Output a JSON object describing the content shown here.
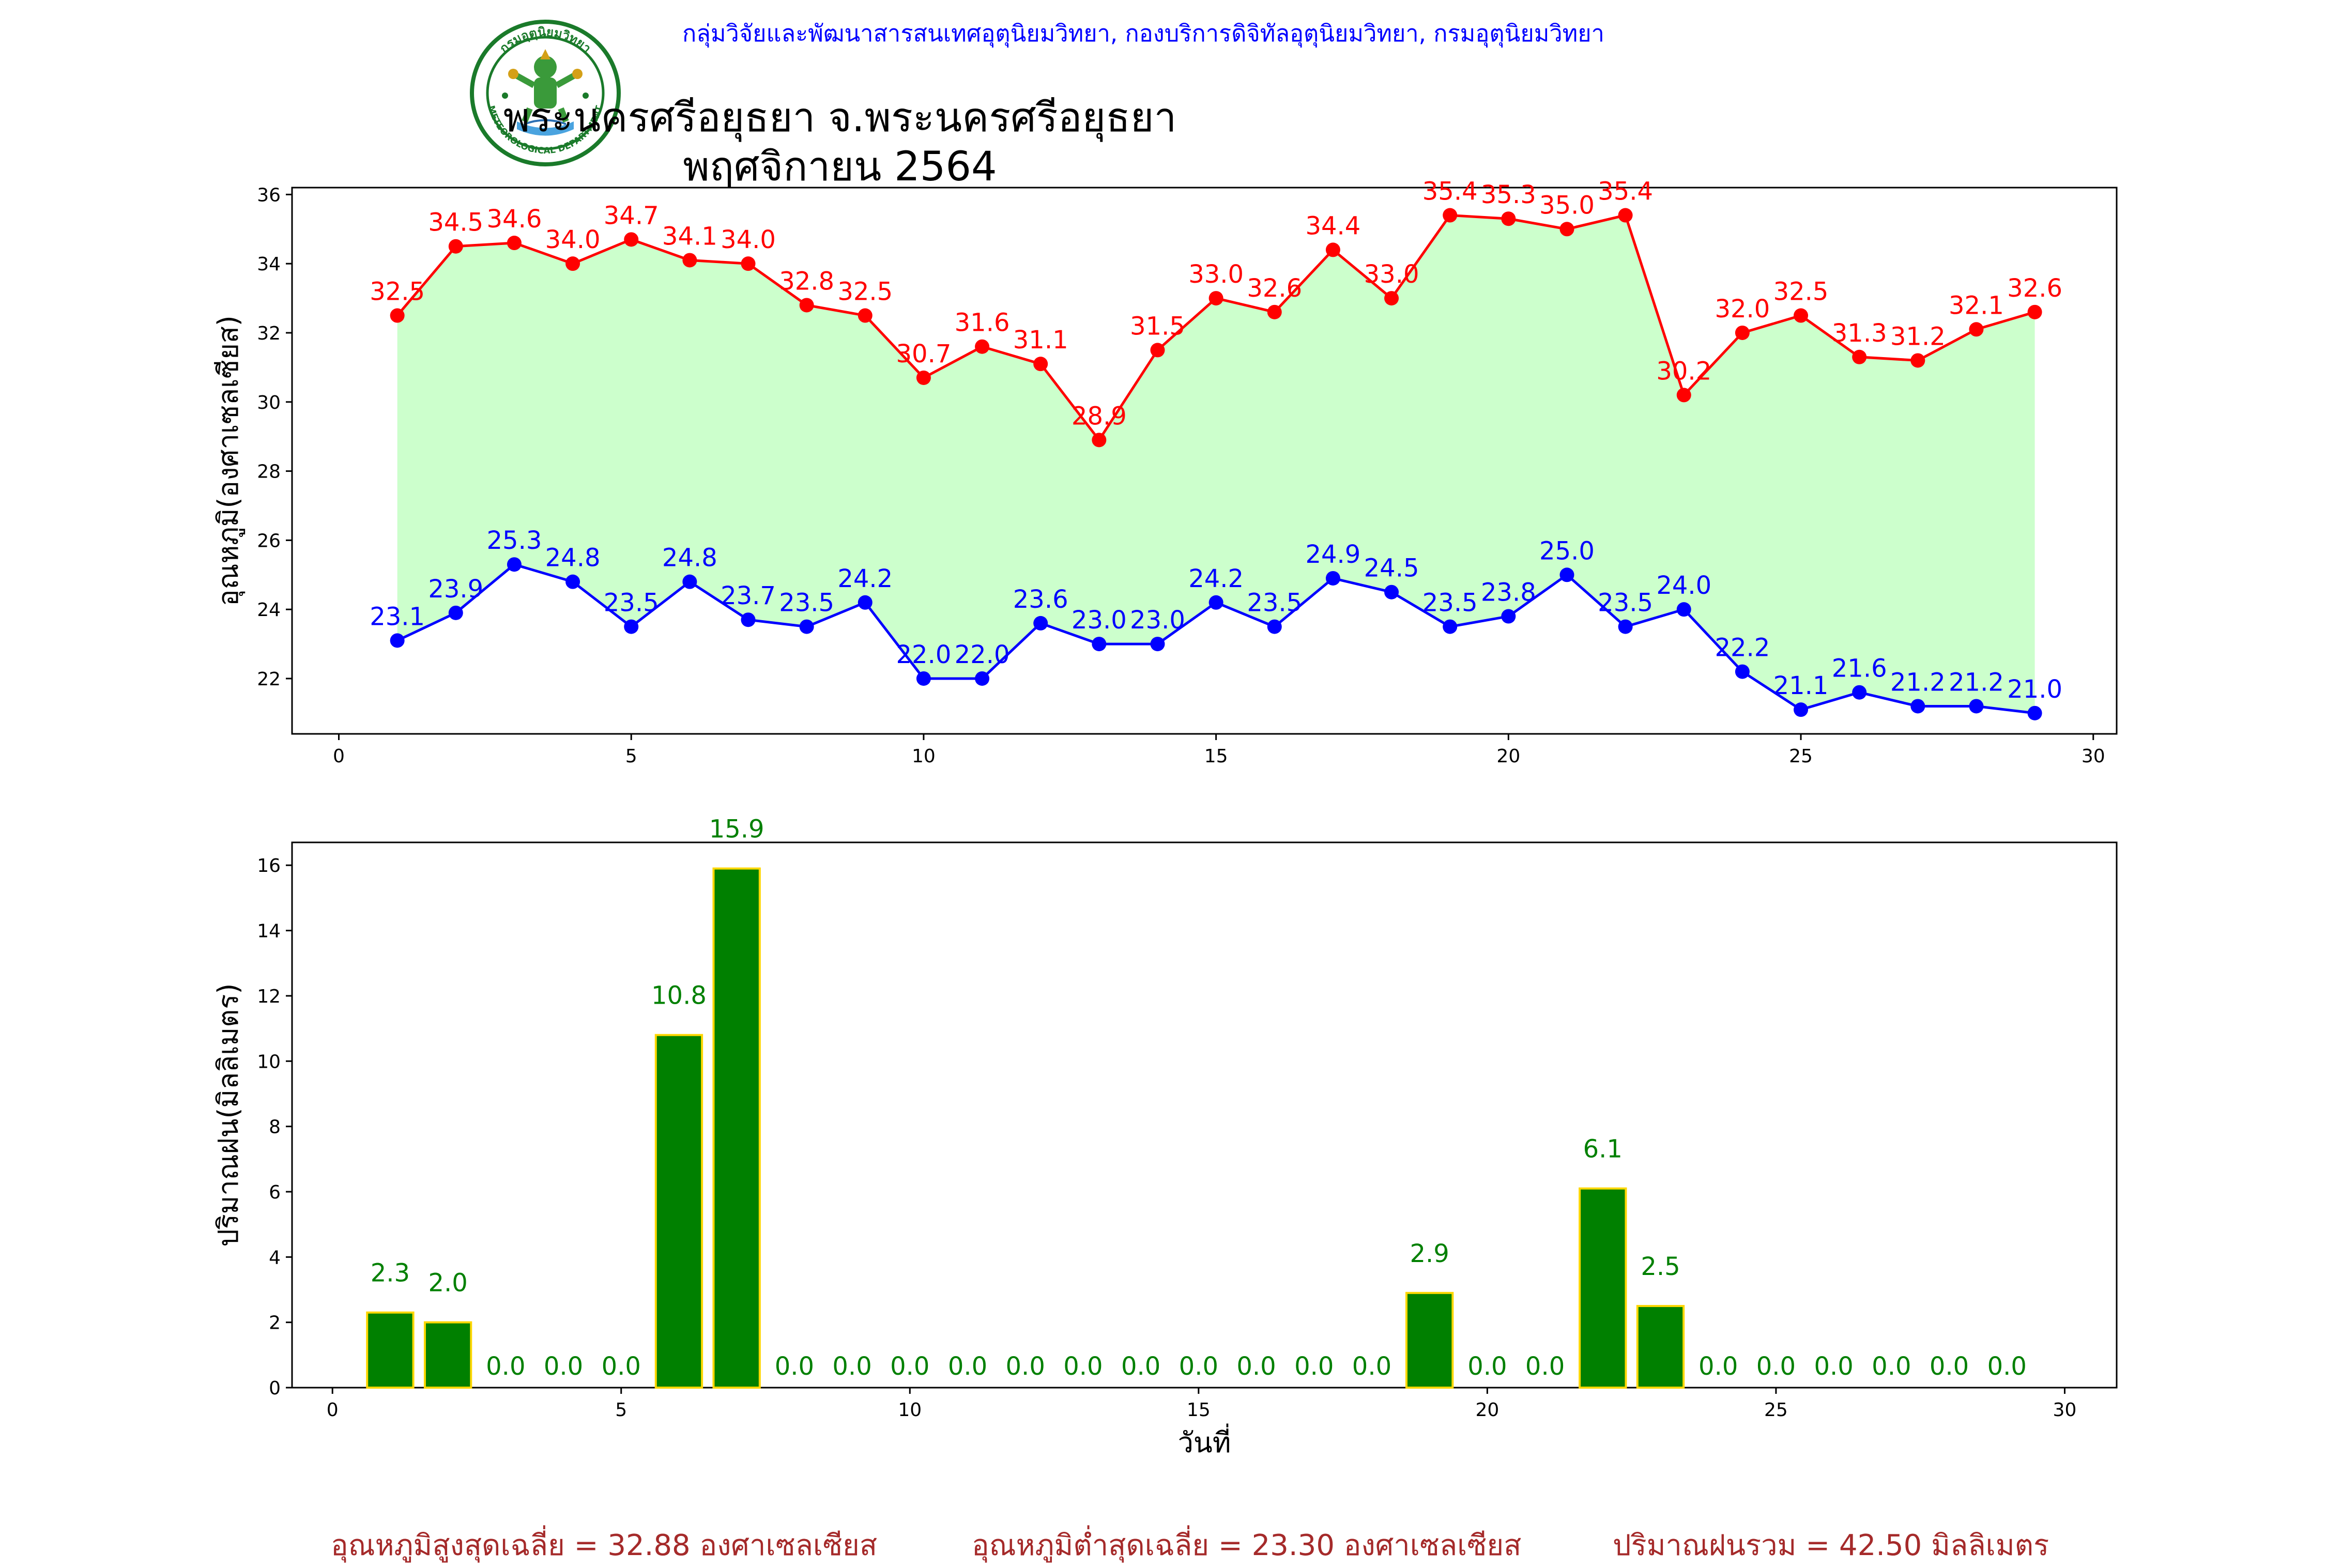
{
  "header": {
    "org": "กลุ่มวิจัยและพัฒนาสารสนเทศอุตุนิยมวิทยา, กองบริการดิจิทัลอุตุนิยมวิทยา, กรมอุตุนิยมวิทยา",
    "logo_text": "กรมอุตุนิยมวิทยา",
    "logo_text_en": "METEOROLOGICAL DEPARTMENT",
    "title_line1": "พระนครศรีอยุธยา จ.พระนครศรีอยุธยา",
    "title_line2": "พฤศจิกายน 2564"
  },
  "colors": {
    "max_line": "#ff0000",
    "min_line": "#0000ff",
    "fill": "#ccffcc",
    "bar": "#008000",
    "bar_edge": "#ffd700",
    "bar_label": "#008000",
    "footer_text": "#a52a2a"
  },
  "chart_data": [
    {
      "type": "line",
      "ylabel": "อุณหภูมิ(องศาเซลเซียส)",
      "xlabel": "",
      "xlim": [
        -0.8,
        30.4
      ],
      "ylim": [
        20.4,
        36.2
      ],
      "xticks": [
        0,
        5,
        10,
        15,
        20,
        25,
        30
      ],
      "yticks": [
        22,
        24,
        26,
        28,
        30,
        32,
        34,
        36
      ],
      "x": [
        1,
        2,
        3,
        4,
        5,
        6,
        7,
        8,
        9,
        10,
        11,
        12,
        13,
        14,
        15,
        16,
        17,
        18,
        19,
        20,
        21,
        22,
        23,
        24,
        25,
        26,
        27,
        28,
        29
      ],
      "series": [
        {
          "role": "max",
          "values": [
            32.5,
            34.5,
            34.6,
            34.0,
            34.7,
            34.1,
            34.0,
            32.8,
            32.5,
            30.7,
            31.6,
            31.1,
            28.9,
            31.5,
            33.0,
            32.6,
            34.4,
            33.0,
            35.4,
            35.3,
            35.0,
            35.4,
            30.2,
            32.0,
            32.5,
            31.3,
            31.2,
            32.1,
            32.6
          ]
        },
        {
          "role": "min",
          "values": [
            23.1,
            23.9,
            25.3,
            24.8,
            23.5,
            24.8,
            23.7,
            23.5,
            24.2,
            22.0,
            22.0,
            23.6,
            23.0,
            23.0,
            24.2,
            23.5,
            24.9,
            24.5,
            23.5,
            23.8,
            25.0,
            23.5,
            24.0,
            22.2,
            21.1,
            21.6,
            21.2,
            21.2,
            21.0
          ]
        }
      ],
      "data_labels": {
        "max": [
          "32.5",
          "34.5",
          "34.6",
          "34.0",
          "34.7",
          "34.1",
          "34.0",
          "32.8",
          "32.5",
          "30.7",
          "31.6",
          "31.1",
          "28.9",
          "31.5",
          "33.0",
          "32.6",
          "34.4",
          "33.0",
          "35.4",
          "35.3",
          "35.0",
          "35.4",
          "30.2",
          "32.0",
          "32.5",
          "31.3",
          "31.2",
          "32.1",
          "32.6"
        ],
        "min": [
          "23.1",
          "23.9",
          "25.3",
          "24.8",
          "23.5",
          "24.8",
          "23.7",
          "23.5",
          "24.2",
          "22.0",
          "22.0",
          "23.6",
          "23.0",
          "23.0",
          "24.2",
          "23.5",
          "24.9",
          "24.5",
          "23.5",
          "23.8",
          "25.0",
          "23.5",
          "24.0",
          "22.2",
          "21.1",
          "21.6",
          "21.2",
          "21.2",
          "21.0"
        ]
      },
      "fill_between": true,
      "grid": false
    },
    {
      "type": "bar",
      "ylabel": "ปริมาณฝน(มิลลิเมตร)",
      "xlabel": "วันที่",
      "xlim": [
        -0.7,
        30.9
      ],
      "ylim": [
        0,
        16.7
      ],
      "xticks": [
        0,
        5,
        10,
        15,
        20,
        25,
        30
      ],
      "yticks": [
        0,
        2,
        4,
        6,
        8,
        10,
        12,
        14,
        16
      ],
      "x": [
        1,
        2,
        3,
        4,
        5,
        6,
        7,
        8,
        9,
        10,
        11,
        12,
        13,
        14,
        15,
        16,
        17,
        18,
        19,
        20,
        21,
        22,
        23,
        24,
        25,
        26,
        27,
        28,
        29
      ],
      "values": [
        2.3,
        2.0,
        0.0,
        0.0,
        0.0,
        10.8,
        15.9,
        0.0,
        0.0,
        0.0,
        0.0,
        0.0,
        0.0,
        0.0,
        0.0,
        0.0,
        0.0,
        0.0,
        2.9,
        0.0,
        0.0,
        6.1,
        2.5,
        0.0,
        0.0,
        0.0,
        0.0,
        0.0,
        0.0
      ],
      "data_labels": [
        "2.3",
        "2.0",
        "0.0",
        "0.0",
        "0.0",
        "10.8",
        "15.9",
        "0.0",
        "0.0",
        "0.0",
        "0.0",
        "0.0",
        "0.0",
        "0.0",
        "0.0",
        "0.0",
        "0.0",
        "0.0",
        "2.9",
        "0.0",
        "0.0",
        "6.1",
        "2.5",
        "0.0",
        "0.0",
        "0.0",
        "0.0",
        "0.0",
        "0.0"
      ],
      "grid": false
    }
  ],
  "footer": {
    "avg_max": "อุณหภูมิสูงสุดเฉลี่ย = 32.88 องศาเซลเซียส",
    "avg_min": "อุณหภูมิต่ำสุดเฉลี่ย = 23.30 องศาเซลเซียส",
    "total_rain": "ปริมาณฝนรวม = 42.50 มิลลิเมตร"
  }
}
